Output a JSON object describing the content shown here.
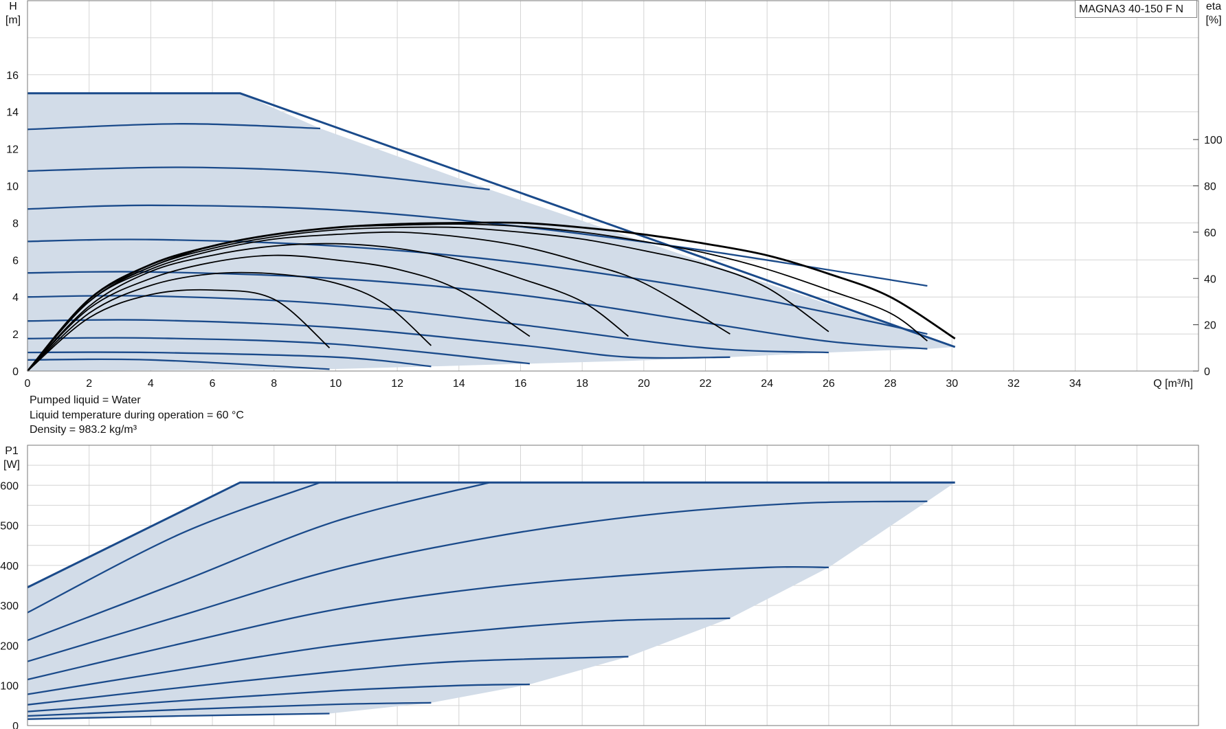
{
  "model_label": "MAGNA3 40-150 F N",
  "notes": [
    "Pumped liquid = Water",
    "Liquid temperature during operation = 60 °C",
    "Density = 983.2 kg/m³"
  ],
  "colors": {
    "curve": "#1a4a8a",
    "envelope": "#d2dce8",
    "efficiency": "#000000",
    "grid": "#d4d4d4"
  },
  "chart_data": [
    {
      "type": "line",
      "title": "",
      "xlabel": "Q [m³/h]",
      "ylabel_line1": "H",
      "ylabel_line2": "[m]",
      "y2label_line1": "eta",
      "y2label_line2": "[%]",
      "xlim": [
        0,
        38
      ],
      "ylim": [
        0,
        20
      ],
      "y2lim": [
        0,
        160
      ],
      "grid": true,
      "x_ticks": [
        "0",
        "2",
        "4",
        "6",
        "8",
        "10",
        "12",
        "14",
        "16",
        "18",
        "20",
        "22",
        "24",
        "26",
        "28",
        "30",
        "32",
        "34"
      ],
      "y_ticks": [
        "0",
        "2",
        "4",
        "6",
        "8",
        "10",
        "12",
        "14",
        "16"
      ],
      "y2_ticks": [
        "0",
        "20",
        "40",
        "60",
        "80",
        "100"
      ],
      "envelope": {
        "upper": [
          [
            0,
            15
          ],
          [
            6.9,
            15
          ],
          [
            9.5,
            13.1
          ],
          [
            15,
            9.8
          ],
          [
            30.1,
            1.3
          ]
        ],
        "lower": [
          [
            30.1,
            1.3
          ],
          [
            29.2,
            1.2
          ],
          [
            26,
            1.0
          ],
          [
            22.8,
            0.75
          ],
          [
            19.5,
            0.55
          ],
          [
            16.3,
            0.4
          ],
          [
            13.1,
            0.25
          ],
          [
            9.8,
            0.1
          ],
          [
            0,
            0
          ]
        ]
      },
      "head_curves": [
        {
          "points": [
            [
              0,
              15.0
            ],
            [
              6.9,
              15.0
            ],
            [
              30.1,
              1.3
            ]
          ],
          "max": true
        },
        {
          "points": [
            [
              0,
              13.05
            ],
            [
              5,
              13.35
            ],
            [
              9.5,
              13.1
            ]
          ]
        },
        {
          "points": [
            [
              0,
              10.8
            ],
            [
              5,
              11.0
            ],
            [
              10,
              10.7
            ],
            [
              15,
              9.8
            ]
          ]
        },
        {
          "points": [
            [
              0,
              8.75
            ],
            [
              4,
              8.95
            ],
            [
              10,
              8.7
            ],
            [
              16,
              7.8
            ],
            [
              22,
              6.5
            ],
            [
              29.2,
              4.6
            ]
          ]
        },
        {
          "points": [
            [
              0,
              7.0
            ],
            [
              4,
              7.1
            ],
            [
              10,
              6.75
            ],
            [
              16,
              5.85
            ],
            [
              22,
              4.4
            ],
            [
              26,
              3.15
            ],
            [
              29.2,
              2.0
            ]
          ]
        },
        {
          "points": [
            [
              0,
              5.3
            ],
            [
              4,
              5.35
            ],
            [
              10,
              5.0
            ],
            [
              16,
              4.1
            ],
            [
              22,
              2.6
            ],
            [
              26,
              1.6
            ],
            [
              29.2,
              1.2
            ]
          ]
        },
        {
          "points": [
            [
              0,
              4.0
            ],
            [
              4,
              4.05
            ],
            [
              10,
              3.6
            ],
            [
              16,
              2.5
            ],
            [
              22,
              1.25
            ],
            [
              26,
              1.0
            ]
          ]
        },
        {
          "points": [
            [
              0,
              2.7
            ],
            [
              4,
              2.75
            ],
            [
              10,
              2.35
            ],
            [
              16,
              1.4
            ],
            [
              19.5,
              0.75
            ],
            [
              22.8,
              0.75
            ]
          ]
        },
        {
          "points": [
            [
              0,
              1.75
            ],
            [
              4,
              1.78
            ],
            [
              10,
              1.45
            ],
            [
              16.3,
              0.4
            ]
          ]
        },
        {
          "points": [
            [
              0,
              1.0
            ],
            [
              4,
              1.0
            ],
            [
              10,
              0.75
            ],
            [
              13.1,
              0.25
            ]
          ]
        },
        {
          "points": [
            [
              0,
              0.6
            ],
            [
              4,
              0.6
            ],
            [
              9.8,
              0.1
            ]
          ]
        }
      ],
      "efficiency_curves": [
        {
          "points": [
            [
              0,
              0
            ],
            [
              2,
              23
            ],
            [
              4,
              33
            ],
            [
              6,
              35
            ],
            [
              8,
              31
            ],
            [
              9.8,
              10
            ]
          ]
        },
        {
          "points": [
            [
              0,
              0
            ],
            [
              2,
              25
            ],
            [
              4,
              37
            ],
            [
              6,
              42
            ],
            [
              8,
              42
            ],
            [
              10,
              38
            ],
            [
              11.6,
              29
            ],
            [
              13.1,
              11
            ]
          ]
        },
        {
          "points": [
            [
              0,
              0
            ],
            [
              2,
              27
            ],
            [
              4,
              40
            ],
            [
              6,
              47
            ],
            [
              8,
              50
            ],
            [
              10,
              48
            ],
            [
              12,
              44
            ],
            [
              14,
              35
            ],
            [
              16.3,
              15
            ]
          ]
        },
        {
          "points": [
            [
              0,
              0
            ],
            [
              2,
              28
            ],
            [
              4,
              43
            ],
            [
              6,
              50
            ],
            [
              8,
              54
            ],
            [
              10,
              55
            ],
            [
              12,
              53
            ],
            [
              14,
              48
            ],
            [
              16,
              40
            ],
            [
              18,
              30
            ],
            [
              19.5,
              15
            ]
          ]
        },
        {
          "points": [
            [
              0,
              0
            ],
            [
              2,
              30
            ],
            [
              4,
              44
            ],
            [
              6,
              52
            ],
            [
              8,
              57
            ],
            [
              10,
              59
            ],
            [
              12,
              60
            ],
            [
              14,
              58
            ],
            [
              16,
              54
            ],
            [
              18,
              47
            ],
            [
              20,
              38
            ],
            [
              22.8,
              16
            ]
          ]
        },
        {
          "points": [
            [
              0,
              0
            ],
            [
              2,
              30
            ],
            [
              4,
              45
            ],
            [
              6,
              53
            ],
            [
              8,
              58
            ],
            [
              10,
              61
            ],
            [
              12,
              62
            ],
            [
              14,
              62
            ],
            [
              16,
              60
            ],
            [
              18,
              57
            ],
            [
              20,
              52
            ],
            [
              22,
              46
            ],
            [
              24,
              36
            ],
            [
              26,
              17
            ]
          ]
        },
        {
          "points": [
            [
              0,
              0
            ],
            [
              2,
              31
            ],
            [
              4,
              45
            ],
            [
              6,
              54
            ],
            [
              8,
              59
            ],
            [
              10,
              62
            ],
            [
              12,
              63
            ],
            [
              14,
              63.5
            ],
            [
              16,
              62.5
            ],
            [
              18,
              60
            ],
            [
              20,
              56
            ],
            [
              22,
              51
            ],
            [
              24,
              44
            ],
            [
              26,
              35
            ],
            [
              28,
              25
            ],
            [
              29.2,
              13
            ]
          ]
        },
        {
          "points": [
            [
              0,
              0
            ],
            [
              2,
              31
            ],
            [
              4,
              46
            ],
            [
              6,
              54
            ],
            [
              8,
              59
            ],
            [
              10,
              62
            ],
            [
              12,
              63.5
            ],
            [
              14,
              64
            ],
            [
              16,
              64
            ],
            [
              18,
              62
            ],
            [
              20,
              59
            ],
            [
              22,
              55
            ],
            [
              24,
              50
            ],
            [
              26,
              42
            ],
            [
              28,
              32
            ],
            [
              30.1,
              14
            ]
          ],
          "max": true
        }
      ]
    },
    {
      "type": "line",
      "title": "",
      "xlabel": "",
      "ylabel_line1": "P1",
      "ylabel_line2": "[W]",
      "xlim": [
        0,
        38
      ],
      "ylim": [
        0,
        700
      ],
      "grid": true,
      "y_ticks": [
        "0",
        "100",
        "200",
        "300",
        "400",
        "500",
        "600"
      ],
      "envelope": {
        "upper": [
          [
            0,
            345
          ],
          [
            6.9,
            607
          ],
          [
            30.1,
            607
          ]
        ],
        "lower": [
          [
            30.1,
            607
          ],
          [
            29.2,
            560
          ],
          [
            26,
            395
          ],
          [
            22.8,
            268
          ],
          [
            19.5,
            172
          ],
          [
            16.3,
            103
          ],
          [
            13.1,
            57
          ],
          [
            9.8,
            30
          ],
          [
            0,
            18
          ]
        ]
      },
      "power_curves": [
        {
          "points": [
            [
              0,
              345
            ],
            [
              6.9,
              607
            ],
            [
              30.1,
              607
            ]
          ],
          "max": true
        },
        {
          "points": [
            [
              0,
              282
            ],
            [
              5,
              480
            ],
            [
              9.5,
              607
            ]
          ]
        },
        {
          "points": [
            [
              0,
              213
            ],
            [
              5,
              360
            ],
            [
              10,
              510
            ],
            [
              15,
              607
            ]
          ]
        },
        {
          "points": [
            [
              0,
              160
            ],
            [
              5,
              275
            ],
            [
              10,
              390
            ],
            [
              15,
              470
            ],
            [
              20,
              525
            ],
            [
              25,
              555
            ],
            [
              29.2,
              560
            ]
          ]
        },
        {
          "points": [
            [
              0,
              115
            ],
            [
              5,
              205
            ],
            [
              10,
              290
            ],
            [
              15,
              345
            ],
            [
              20,
              378
            ],
            [
              24,
              395
            ],
            [
              26,
              395
            ]
          ]
        },
        {
          "points": [
            [
              0,
              78
            ],
            [
              5,
              140
            ],
            [
              10,
              200
            ],
            [
              15,
              240
            ],
            [
              19,
              262
            ],
            [
              22.8,
              268
            ]
          ]
        },
        {
          "points": [
            [
              0,
              52
            ],
            [
              5,
              95
            ],
            [
              10,
              135
            ],
            [
              14,
              160
            ],
            [
              19.5,
              172
            ]
          ]
        },
        {
          "points": [
            [
              0,
              35
            ],
            [
              5,
              62
            ],
            [
              10,
              87
            ],
            [
              14,
              100
            ],
            [
              16.3,
              103
            ]
          ]
        },
        {
          "points": [
            [
              0,
              24
            ],
            [
              5,
              40
            ],
            [
              10,
              53
            ],
            [
              13.1,
              57
            ]
          ]
        },
        {
          "points": [
            [
              0,
              16
            ],
            [
              5,
              24
            ],
            [
              9.8,
              30
            ]
          ]
        }
      ]
    }
  ]
}
